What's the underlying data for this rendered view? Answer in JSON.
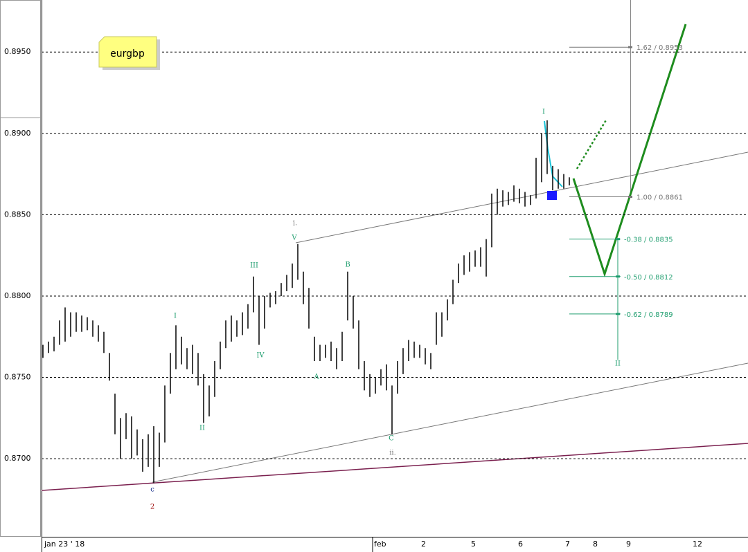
{
  "chart_data": {
    "type": "ohlc",
    "symbol": "eurgbp",
    "color": "#000000",
    "x": [
      0,
      2,
      4,
      6,
      8,
      10,
      12,
      14,
      16,
      18,
      20,
      22,
      24,
      26,
      28,
      30,
      32,
      34,
      36,
      38,
      40,
      42,
      44,
      46,
      48,
      50,
      52,
      54,
      56,
      58,
      60,
      62,
      64,
      66,
      68,
      70,
      72,
      74,
      76,
      78,
      80,
      82,
      84,
      86,
      88,
      90,
      92,
      94,
      96,
      98,
      100,
      102,
      104,
      106,
      108,
      110,
      112,
      114,
      116,
      118,
      120,
      122,
      124,
      126,
      128,
      130,
      132,
      134,
      136,
      138,
      140,
      142,
      144,
      146,
      148,
      150,
      152,
      154,
      156,
      158,
      160,
      162,
      164,
      166,
      168,
      170,
      172,
      174,
      176,
      178,
      180,
      182,
      184,
      186,
      188,
      190
    ],
    "high": [
      0.877,
      0.8772,
      0.8775,
      0.8785,
      0.8793,
      0.879,
      0.879,
      0.8788,
      0.8787,
      0.8785,
      0.8782,
      0.8778,
      0.8765,
      0.874,
      0.8725,
      0.8728,
      0.8726,
      0.8718,
      0.8712,
      0.8715,
      0.872,
      0.8716,
      0.8745,
      0.8765,
      0.8782,
      0.8775,
      0.8768,
      0.877,
      0.8765,
      0.8752,
      0.8745,
      0.876,
      0.8772,
      0.8785,
      0.8788,
      0.8785,
      0.879,
      0.8795,
      0.8812,
      0.88,
      0.88,
      0.8802,
      0.8803,
      0.8808,
      0.8813,
      0.882,
      0.8832,
      0.8815,
      0.8805,
      0.8775,
      0.877,
      0.877,
      0.8772,
      0.8768,
      0.8778,
      0.8815,
      0.88,
      0.8785,
      0.876,
      0.8752,
      0.875,
      0.8755,
      0.8758,
      0.8745,
      0.876,
      0.8768,
      0.8773,
      0.8772,
      0.877,
      0.8768,
      0.8765,
      0.879,
      0.879,
      0.8798,
      0.881,
      0.882,
      0.8825,
      0.8827,
      0.8828,
      0.883,
      0.8835,
      0.8863,
      0.8866,
      0.8865,
      0.8864,
      0.8868,
      0.8866,
      0.8864,
      0.8862,
      0.8885,
      0.89,
      0.8908,
      0.888,
      0.8878,
      0.8875,
      0.8873
    ],
    "low": [
      0.8762,
      0.8765,
      0.8766,
      0.877,
      0.8772,
      0.8775,
      0.8778,
      0.8778,
      0.8779,
      0.8775,
      0.8772,
      0.8765,
      0.8748,
      0.8715,
      0.87,
      0.8712,
      0.87,
      0.8702,
      0.8692,
      0.8695,
      0.8685,
      0.8695,
      0.871,
      0.874,
      0.8755,
      0.8758,
      0.8755,
      0.8752,
      0.8745,
      0.8722,
      0.8726,
      0.8738,
      0.8755,
      0.8768,
      0.8772,
      0.8775,
      0.8776,
      0.878,
      0.879,
      0.877,
      0.878,
      0.8793,
      0.8795,
      0.88,
      0.8803,
      0.8805,
      0.881,
      0.8795,
      0.878,
      0.876,
      0.876,
      0.8762,
      0.876,
      0.8755,
      0.876,
      0.8785,
      0.878,
      0.8755,
      0.8742,
      0.8738,
      0.874,
      0.8745,
      0.8742,
      0.8715,
      0.874,
      0.8752,
      0.876,
      0.8762,
      0.8762,
      0.8758,
      0.8755,
      0.877,
      0.8775,
      0.8785,
      0.8795,
      0.8808,
      0.8813,
      0.8815,
      0.8818,
      0.8818,
      0.8812,
      0.883,
      0.885,
      0.8855,
      0.8856,
      0.8858,
      0.8857,
      0.8855,
      0.8856,
      0.886,
      0.887,
      0.8875,
      0.8865,
      0.8866,
      0.8866,
      0.8868
    ],
    "xlim": [
      0,
      252
    ],
    "xticks": [
      {
        "value": 0,
        "label": "jan 23 ' 18"
      },
      {
        "value": 119,
        "label": "feb"
      },
      {
        "value": 136,
        "label": "2"
      },
      {
        "value": 154,
        "label": "5"
      },
      {
        "value": 171,
        "label": "6"
      },
      {
        "value": 188,
        "label": "7"
      },
      {
        "value": 198,
        "label": "8"
      },
      {
        "value": 210,
        "label": "9"
      },
      {
        "value": 234,
        "label": "12"
      }
    ],
    "ylim": [
      0.8652,
      0.8982
    ],
    "yticks": [
      {
        "value": 0.87,
        "label": "0.8700"
      },
      {
        "value": 0.875,
        "label": "0.8750"
      },
      {
        "value": 0.88,
        "label": "0.8800"
      },
      {
        "value": 0.885,
        "label": "0.8850"
      },
      {
        "value": 0.89,
        "label": "0.8900"
      },
      {
        "value": 0.895,
        "label": "0.8950"
      }
    ],
    "grid": true,
    "fib_levels": [
      {
        "value": 0.8953,
        "label": "1.62 / 0.8953"
      },
      {
        "value": 0.8861,
        "label": "1.00 / 0.8861"
      },
      {
        "value": 0.8835,
        "label": "-0.38 / 0.8835"
      },
      {
        "value": 0.8812,
        "label": "-0.50 / 0.8812"
      },
      {
        "value": 0.8789,
        "label": "-0.62 / 0.8789"
      }
    ],
    "wave_labels": [
      "I",
      "II",
      "III",
      "IV",
      "V",
      "i.",
      "A",
      "B",
      "C",
      "ii.",
      "c",
      "2",
      "I",
      "II"
    ]
  }
}
